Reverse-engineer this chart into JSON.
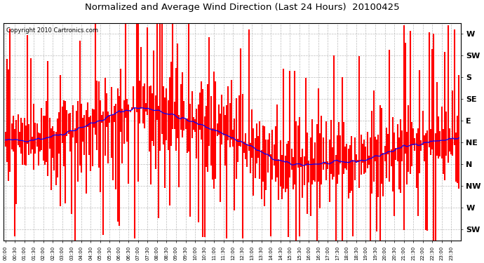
{
  "title": "Normalized and Average Wind Direction (Last 24 Hours)  20100425",
  "copyright": "Copyright 2010 Cartronics.com",
  "background_color": "#ffffff",
  "plot_bg_color": "#ffffff",
  "grid_color": "#aaaaaa",
  "red_color": "#ff0000",
  "blue_color": "#0000ff",
  "ytick_labels": [
    "W",
    "SW",
    "S",
    "SE",
    "E",
    "NE",
    "N",
    "NW",
    "W",
    "SW"
  ],
  "ytick_values": [
    9,
    8,
    7,
    6,
    5,
    4,
    3,
    2,
    1,
    0
  ],
  "ylim": [
    -0.5,
    9.5
  ],
  "num_points": 288,
  "seed": 42,
  "bar_width": 1.5,
  "avg_noise": 0.06,
  "red_spread": 1.3
}
